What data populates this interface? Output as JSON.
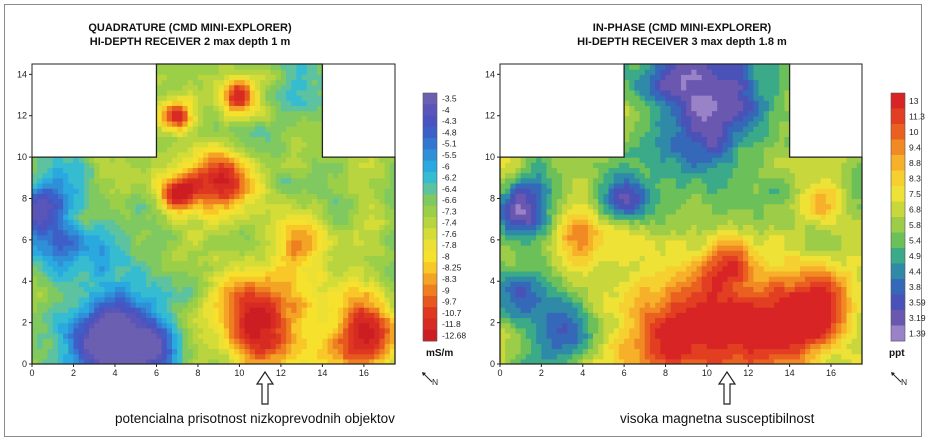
{
  "chart_data": [
    {
      "type": "heatmap",
      "title": "QUADRATURE (CMD MINI-EXPLORER)",
      "subtitle": "HI-DEPTH RECEIVER 2 max depth 1 m",
      "x_ticks": [
        "0",
        "2",
        "4",
        "6",
        "8",
        "10",
        "12",
        "14",
        "16"
      ],
      "y_ticks": [
        "0",
        "2",
        "4",
        "6",
        "8",
        "10",
        "12",
        "14"
      ],
      "xlim": [
        0,
        17.5
      ],
      "ylim": [
        0,
        14.5
      ],
      "colorbar_unit": "mS/m",
      "colorbar_labels": [
        "-3.5",
        "-4",
        "-4.3",
        "-4.8",
        "-5.1",
        "-5.5",
        "-6",
        "-6.2",
        "-6.4",
        "-6.6",
        "-7.3",
        "-7.4",
        "-7.6",
        "-7.8",
        "-8",
        "-8.25",
        "-8.3",
        "-9",
        "-9.7",
        "-10.7",
        "-11.8",
        "-12.68"
      ],
      "colorbar_colors": [
        "#6a5fb0",
        "#5a55b8",
        "#4a54c0",
        "#3d60c8",
        "#3576d0",
        "#2f90d8",
        "#2aa9e0",
        "#36bcd0",
        "#5cc2a0",
        "#80c860",
        "#9ccf48",
        "#b8d540",
        "#d4dc38",
        "#ece034",
        "#f6e12c",
        "#f8c828",
        "#f4a424",
        "#ee7e20",
        "#e65820",
        "#de3820",
        "#d62a22",
        "#cc1e22"
      ],
      "north_label": "N",
      "caption": "potencialna prisotnost nizkoprevodnih objektov"
    },
    {
      "type": "heatmap",
      "title": "IN-PHASE (CMD MINI-EXPLORER)",
      "subtitle": "HI-DEPTH RECEIVER 3 max depth 1.8 m",
      "x_ticks": [
        "0",
        "2",
        "4",
        "6",
        "8",
        "10",
        "12",
        "14",
        "16"
      ],
      "y_ticks": [
        "0",
        "2",
        "4",
        "6",
        "8",
        "10",
        "12",
        "14"
      ],
      "xlim": [
        0,
        17.5
      ],
      "ylim": [
        0,
        14.5
      ],
      "colorbar_unit": "ppt",
      "colorbar_labels": [
        "13",
        "11.3",
        "10",
        "9.4",
        "8.8",
        "8.3",
        "7.5",
        "6.8",
        "5.8",
        "5.4",
        "4.9",
        "4.4",
        "3.8",
        "3.59",
        "3.19",
        "1.39"
      ],
      "colorbar_colors": [
        "#d82424",
        "#e23e22",
        "#ea6020",
        "#f28a24",
        "#f6b02a",
        "#f6d030",
        "#eee236",
        "#c8d83c",
        "#9ccc48",
        "#6cc05a",
        "#3aaa88",
        "#2f8aa8",
        "#3568b8",
        "#4a52b8",
        "#6a58b0",
        "#9a82c8"
      ],
      "north_label": "N",
      "caption": "visoka magnetna susceptibilnost"
    }
  ]
}
